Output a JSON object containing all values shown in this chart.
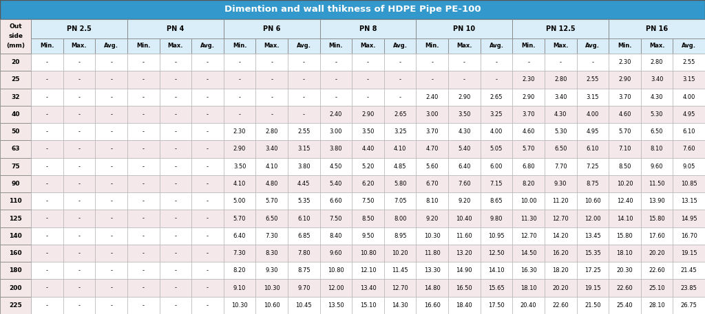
{
  "title": "Dimention and wall thikness of HDPE Pipe PE-100",
  "title_bg": "#3399cc",
  "title_color": "#ffffff",
  "header_bg": "#daeef9",
  "subheader_bg": "#daeef9",
  "out_side_bg": "#f5e8e8",
  "row_bg_even": "#ffffff",
  "row_bg_odd": "#f5e8ea",
  "sub_headers": [
    "Min.",
    "Max.",
    "Avg."
  ],
  "pipe_sizes": [
    "20",
    "25",
    "32",
    "40",
    "50",
    "63",
    "75",
    "90",
    "110",
    "125",
    "140",
    "160",
    "180",
    "200",
    "225"
  ],
  "pn_groups": [
    "PN 2.5",
    "PN 4",
    "PN 6",
    "PN 8",
    "PN 10",
    "PN 12.5",
    "PN 16"
  ],
  "data": {
    "20": [
      "-",
      "-",
      "-",
      "-",
      "-",
      "-",
      "-",
      "-",
      "-",
      "-",
      "-",
      "-",
      "-",
      "-",
      "-",
      "-",
      "-",
      "-",
      "2.30",
      "2.80",
      "2.55"
    ],
    "25": [
      "-",
      "-",
      "-",
      "-",
      "-",
      "-",
      "-",
      "-",
      "-",
      "-",
      "-",
      "-",
      "-",
      "-",
      "-",
      "2.30",
      "2.80",
      "2.55",
      "2.90",
      "3.40",
      "3.15"
    ],
    "32": [
      "-",
      "-",
      "-",
      "-",
      "-",
      "-",
      "-",
      "-",
      "-",
      "-",
      "-",
      "-",
      "2.40",
      "2.90",
      "2.65",
      "2.90",
      "3.40",
      "3.15",
      "3.70",
      "4.30",
      "4.00"
    ],
    "40": [
      "-",
      "-",
      "-",
      "-",
      "-",
      "-",
      "-",
      "-",
      "-",
      "2.40",
      "2.90",
      "2.65",
      "3.00",
      "3.50",
      "3.25",
      "3.70",
      "4.30",
      "4.00",
      "4.60",
      "5.30",
      "4.95"
    ],
    "50": [
      "-",
      "-",
      "-",
      "-",
      "-",
      "-",
      "2.30",
      "2.80",
      "2.55",
      "3.00",
      "3.50",
      "3.25",
      "3.70",
      "4.30",
      "4.00",
      "4.60",
      "5.30",
      "4.95",
      "5.70",
      "6.50",
      "6.10"
    ],
    "63": [
      "-",
      "-",
      "-",
      "-",
      "-",
      "-",
      "2.90",
      "3.40",
      "3.15",
      "3.80",
      "4.40",
      "4.10",
      "4.70",
      "5.40",
      "5.05",
      "5.70",
      "6.50",
      "6.10",
      "7.10",
      "8.10",
      "7.60"
    ],
    "75": [
      "-",
      "-",
      "-",
      "-",
      "-",
      "-",
      "3.50",
      "4.10",
      "3.80",
      "4.50",
      "5.20",
      "4.85",
      "5.60",
      "6.40",
      "6.00",
      "6.80",
      "7.70",
      "7.25",
      "8.50",
      "9.60",
      "9.05"
    ],
    "90": [
      "-",
      "-",
      "-",
      "-",
      "-",
      "-",
      "4.10",
      "4.80",
      "4.45",
      "5.40",
      "6.20",
      "5.80",
      "6.70",
      "7.60",
      "7.15",
      "8.20",
      "9.30",
      "8.75",
      "10.20",
      "11.50",
      "10.85"
    ],
    "110": [
      "-",
      "-",
      "-",
      "-",
      "-",
      "-",
      "5.00",
      "5.70",
      "5.35",
      "6.60",
      "7.50",
      "7.05",
      "8.10",
      "9.20",
      "8.65",
      "10.00",
      "11.20",
      "10.60",
      "12.40",
      "13.90",
      "13.15"
    ],
    "125": [
      "-",
      "-",
      "-",
      "-",
      "-",
      "-",
      "5.70",
      "6.50",
      "6.10",
      "7.50",
      "8.50",
      "8.00",
      "9.20",
      "10.40",
      "9.80",
      "11.30",
      "12.70",
      "12.00",
      "14.10",
      "15.80",
      "14.95"
    ],
    "140": [
      "-",
      "-",
      "-",
      "-",
      "-",
      "-",
      "6.40",
      "7.30",
      "6.85",
      "8.40",
      "9.50",
      "8.95",
      "10.30",
      "11.60",
      "10.95",
      "12.70",
      "14.20",
      "13.45",
      "15.80",
      "17.60",
      "16.70"
    ],
    "160": [
      "-",
      "-",
      "-",
      "-",
      "-",
      "-",
      "7.30",
      "8.30",
      "7.80",
      "9.60",
      "10.80",
      "10.20",
      "11.80",
      "13.20",
      "12.50",
      "14.50",
      "16.20",
      "15.35",
      "18.10",
      "20.20",
      "19.15"
    ],
    "180": [
      "-",
      "-",
      "-",
      "-",
      "-",
      "-",
      "8.20",
      "9.30",
      "8.75",
      "10.80",
      "12.10",
      "11.45",
      "13.30",
      "14.90",
      "14.10",
      "16.30",
      "18.20",
      "17.25",
      "20.30",
      "22.60",
      "21.45"
    ],
    "200": [
      "-",
      "-",
      "-",
      "-",
      "-",
      "-",
      "9.10",
      "10.30",
      "9.70",
      "12.00",
      "13.40",
      "12.70",
      "14.80",
      "16.50",
      "15.65",
      "18.10",
      "20.20",
      "19.15",
      "22.60",
      "25.10",
      "23.85"
    ],
    "225": [
      "-",
      "-",
      "-",
      "-",
      "-",
      "-",
      "10.30",
      "10.60",
      "10.45",
      "13.50",
      "15.10",
      "14.30",
      "16.60",
      "18.40",
      "17.50",
      "20.40",
      "22.60",
      "21.50",
      "25.40",
      "28.10",
      "26.75"
    ]
  }
}
